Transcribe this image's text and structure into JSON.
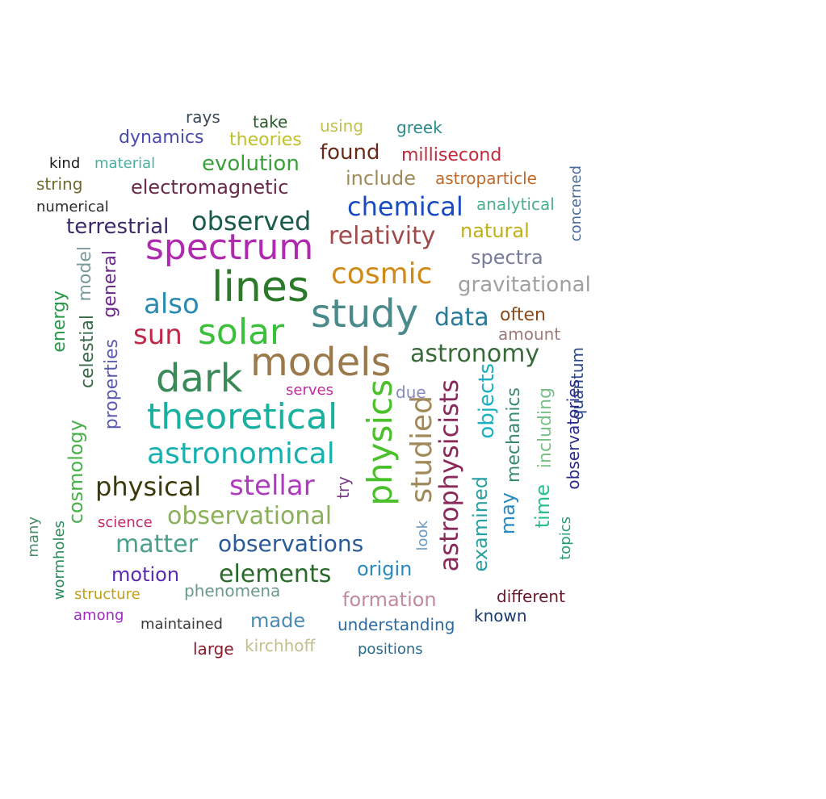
{
  "words": [
    {
      "text": "study",
      "color": "#4a8a8a"
    },
    {
      "text": "models",
      "color": "#9a7a4a"
    },
    {
      "text": "lines",
      "color": "#2a7a2a"
    },
    {
      "text": "dark",
      "color": "#3a8a5a"
    },
    {
      "text": "solar",
      "color": "#3ac03a"
    },
    {
      "text": "spectrum",
      "color": "#b02ab0"
    },
    {
      "text": "theoretical",
      "color": "#1ab0a0"
    },
    {
      "text": "astronomical",
      "color": "#1ab0b0"
    },
    {
      "text": "physics",
      "color": "#4ac02a"
    },
    {
      "text": "studied",
      "color": "#a08a5a"
    },
    {
      "text": "astrophysicists",
      "color": "#8a2a5a"
    },
    {
      "text": "stellar",
      "color": "#b03ac0"
    },
    {
      "text": "physical",
      "color": "#3a3a0a"
    },
    {
      "text": "observational",
      "color": "#8ab05a"
    },
    {
      "text": "matter",
      "color": "#4aa08a"
    },
    {
      "text": "observations",
      "color": "#2a5a9a"
    },
    {
      "text": "elements",
      "color": "#2a6a2a"
    },
    {
      "text": "sun",
      "color": "#c02a4a"
    },
    {
      "text": "also",
      "color": "#2a8ab0"
    },
    {
      "text": "observed",
      "color": "#1a5a4a"
    },
    {
      "text": "cosmic",
      "color": "#d08a1a"
    },
    {
      "text": "chemical",
      "color": "#1a4ac0"
    },
    {
      "text": "relativity",
      "color": "#a04a4a"
    },
    {
      "text": "astronomy",
      "color": "#3a6a3a"
    },
    {
      "text": "electromagnetic",
      "color": "#6a2a4a"
    },
    {
      "text": "terrestrial",
      "color": "#3a2a6a"
    },
    {
      "text": "gravitational",
      "color": "#a0a0a0"
    },
    {
      "text": "evolution",
      "color": "#3aa03a"
    },
    {
      "text": "found",
      "color": "#6a2a1a"
    },
    {
      "text": "include",
      "color": "#a08a5a"
    },
    {
      "text": "data",
      "color": "#2a7a9a"
    },
    {
      "text": "spectra",
      "color": "#7a7a9a"
    },
    {
      "text": "natural",
      "color": "#c0b01a"
    },
    {
      "text": "formation",
      "color": "#c08aa0"
    },
    {
      "text": "origin",
      "color": "#2a8ac0"
    },
    {
      "text": "motion",
      "color": "#5a2ab0"
    },
    {
      "text": "phenomena",
      "color": "#6a9a8a"
    },
    {
      "text": "made",
      "color": "#4a8ab0"
    },
    {
      "text": "kirchhoff",
      "color": "#c0c08a"
    },
    {
      "text": "understanding",
      "color": "#2a6aa0"
    },
    {
      "text": "objects",
      "color": "#1ab0c0"
    },
    {
      "text": "examined",
      "color": "#2aa0a0"
    },
    {
      "text": "may",
      "color": "#2a8ac0"
    },
    {
      "text": "mechanics",
      "color": "#3a8a6a"
    },
    {
      "text": "including",
      "color": "#7ac08a"
    },
    {
      "text": "time",
      "color": "#2ac08a"
    },
    {
      "text": "cosmology",
      "color": "#4ab04a"
    },
    {
      "text": "celestial",
      "color": "#3a6a4a"
    },
    {
      "text": "properties",
      "color": "#5a5ab0"
    },
    {
      "text": "general",
      "color": "#6a2a8a"
    },
    {
      "text": "energy",
      "color": "#2a9a4a"
    },
    {
      "text": "model",
      "color": "#7a9a9a"
    },
    {
      "text": "theories",
      "color": "#c0c02a"
    },
    {
      "text": "dynamics",
      "color": "#4a4ab0"
    },
    {
      "text": "rays",
      "color": "#3a4a5a"
    },
    {
      "text": "take",
      "color": "#2a5a2a"
    },
    {
      "text": "using",
      "color": "#c0c04a"
    },
    {
      "text": "greek",
      "color": "#2a8a8a"
    },
    {
      "text": "millisecond",
      "color": "#c02a3a"
    },
    {
      "text": "astroparticle",
      "color": "#c06a2a"
    },
    {
      "text": "analytical",
      "color": "#4ab08a"
    },
    {
      "text": "often",
      "color": "#8a4a1a"
    },
    {
      "text": "amount",
      "color": "#a07a7a"
    },
    {
      "text": "large",
      "color": "#8a1a2a"
    },
    {
      "text": "maintained",
      "color": "#3a3a3a"
    },
    {
      "text": "known",
      "color": "#1a3a6a"
    },
    {
      "text": "different",
      "color": "#6a1a2a"
    },
    {
      "text": "positions",
      "color": "#2a6a8a"
    },
    {
      "text": "serves",
      "color": "#c02aa0"
    },
    {
      "text": "structure",
      "color": "#c0a01a"
    },
    {
      "text": "among",
      "color": "#a02ac0"
    },
    {
      "text": "science",
      "color": "#c02a6a"
    },
    {
      "text": "material",
      "color": "#4ab0a0"
    },
    {
      "text": "kind",
      "color": "#1a1a1a"
    },
    {
      "text": "string",
      "color": "#6a6a2a"
    },
    {
      "text": "numerical",
      "color": "#2a2a2a"
    },
    {
      "text": "quantum",
      "color": "#2a4a8a"
    },
    {
      "text": "observatories",
      "color": "#2a2a8a"
    },
    {
      "text": "concerned",
      "color": "#4a6a9a"
    },
    {
      "text": "due",
      "color": "#8a8ac0"
    },
    {
      "text": "look",
      "color": "#6a9ac0"
    },
    {
      "text": "wormholes",
      "color": "#2a8a5a"
    },
    {
      "text": "topics",
      "color": "#2a9a7a"
    },
    {
      "text": "try",
      "color": "#7a3a8a"
    },
    {
      "text": "many",
      "color": "#4a8a6a"
    }
  ]
}
